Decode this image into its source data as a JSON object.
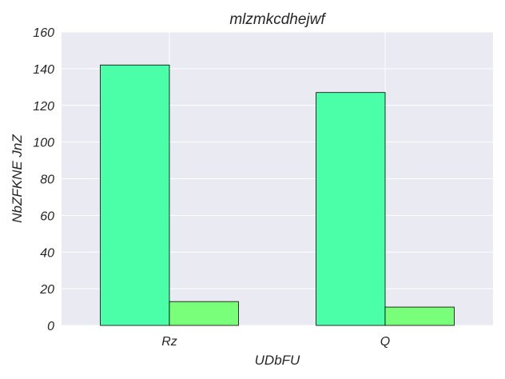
{
  "chart_data": {
    "type": "bar",
    "title": "mlzmkcdhejwf",
    "xlabel": "UDbFU",
    "ylabel": "NbZFKNE JnZ",
    "categories": [
      "Rz",
      "Q"
    ],
    "series": [
      {
        "values": [
          142,
          127
        ],
        "color": "#4affa8"
      },
      {
        "values": [
          13,
          10
        ],
        "color": "#7aff7a"
      }
    ],
    "ylim": [
      0,
      160
    ],
    "yticks": [
      0,
      20,
      40,
      60,
      80,
      100,
      120,
      140,
      160
    ],
    "grid": true,
    "plot_background": "#eaeaf2",
    "grid_color": "#ffffff"
  }
}
